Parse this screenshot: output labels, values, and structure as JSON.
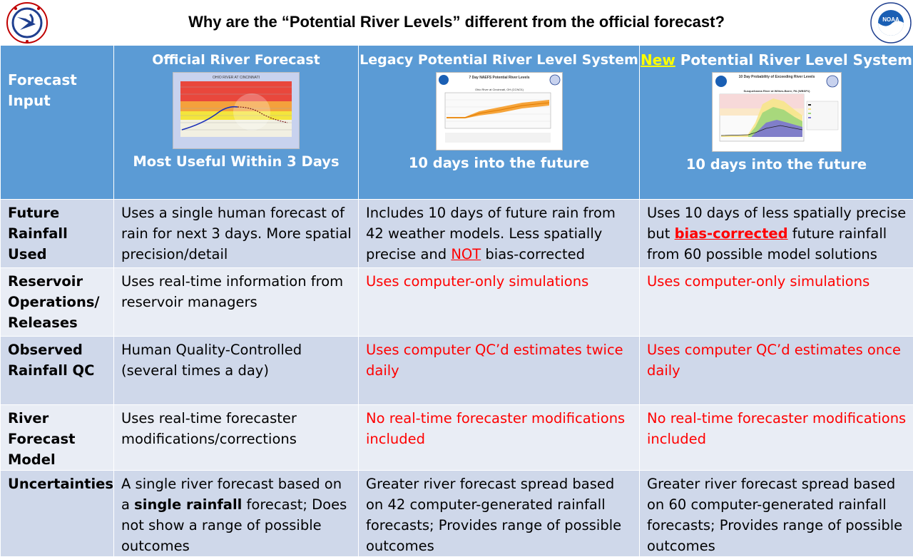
{
  "title": "Why are the “Potential River Levels” different from the official forecast?",
  "header": {
    "row_label_line1": "Forecast",
    "row_label_line2": "Input",
    "col1_title": "Official River Forecast",
    "col1_sub": "Most Useful Within 3 Days",
    "col2_title": "Legacy Potential River Level System",
    "col2_sub": "10 days into the future",
    "col3_new": "New",
    "col3_title": " Potential River Level System",
    "col3_sub": "10 days into the future"
  },
  "rows": [
    {
      "label_a": "Future",
      "label_b": "Rainfall Used",
      "c1": "Uses a single human forecast of rain for next 3 days. More spatial precision/detail",
      "c2_a": "Includes 10 days of future rain from 42 weather models. Less spatially precise and ",
      "c2_red": "NOT",
      "c2_b": " bias-corrected",
      "c3_a": "Uses 10 days of less spatially precise but ",
      "c3_red": "bias-corrected",
      "c3_b": " future rainfall from 60 possible model solutions"
    },
    {
      "label_a": "Reservoir",
      "label_b": "Operations/",
      "label_c": "Releases",
      "c1": "Uses real-time information from reservoir managers",
      "c2": "Uses computer-only simulations",
      "c3": "Uses computer-only simulations"
    },
    {
      "label_a": "Observed",
      "label_b": "Rainfall QC",
      "c1": "Human Quality-Controlled (several times a day)",
      "c2": "Uses computer QC’d estimates twice daily",
      "c3": "Uses computer QC’d estimates once daily"
    },
    {
      "label_a": "River Forecast",
      "label_b": "Model",
      "c1": "Uses real-time forecaster modifications/corrections",
      "c2": "No real-time forecaster modifications included",
      "c3": "No real-time forecaster modifications included"
    },
    {
      "label_a": "Uncertainties",
      "c1_a": "A single river forecast based on a ",
      "c1_bold": "single rainfall",
      "c1_b": " forecast; Does not show a range of possible outcomes",
      "c2": "Greater river forecast spread based on 42 computer-generated rainfall forecasts; Provides range of possible outcomes",
      "c3": "Greater river forecast spread based on 60 computer-generated rainfall forecasts; Provides range of possible outcomes"
    }
  ],
  "thumbnails": {
    "official_chart_title": "OHIO RIVER AT CINCINNATI",
    "legacy_chart_title": "7 Day NAEFS Potential River Levels",
    "legacy_chart_sub": "Ohio River at Cincinnati, OH (CCNO1)",
    "new_chart_title": "10 Day Probability of Exceeding River Levels",
    "new_chart_sub": "Susquehanna River at Wilkes-Barre, PA (WBSP1)"
  },
  "colors": {
    "header_blue": "#5b9bd5",
    "row_dark": "#cfd8ea",
    "row_light": "#e9edf5",
    "warning_red": "#ff0000",
    "new_yellow": "#ffff00"
  },
  "icons": [
    "nws-logo-icon",
    "noaa-logo-icon"
  ]
}
